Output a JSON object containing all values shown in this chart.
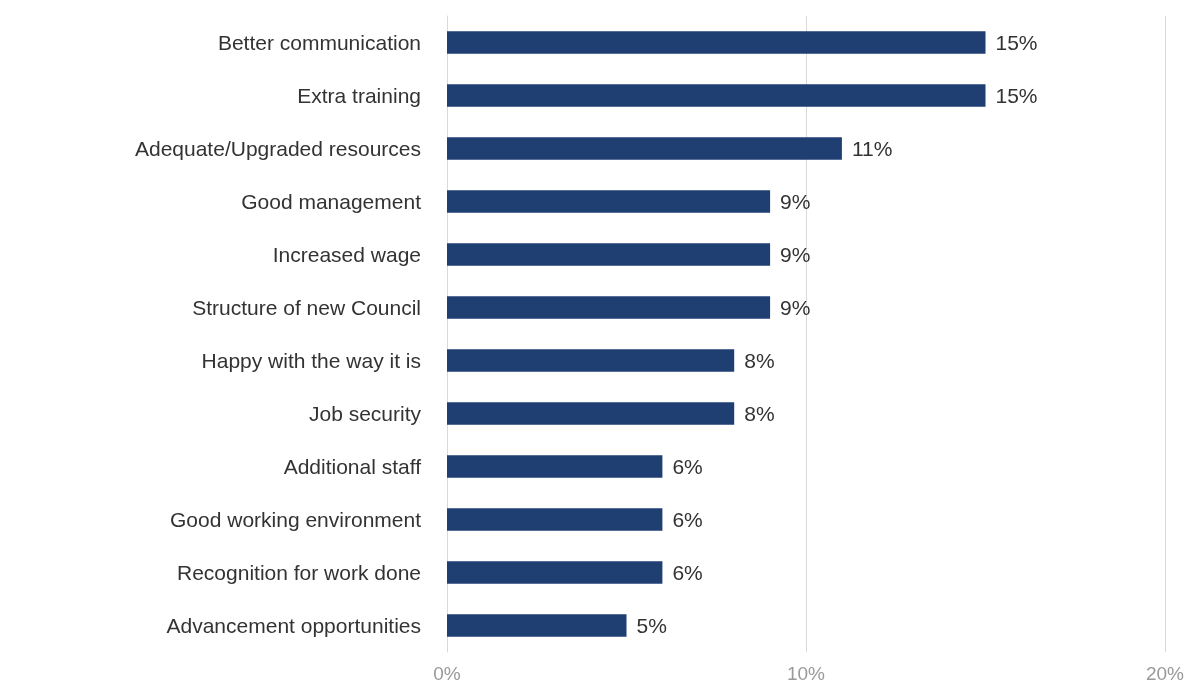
{
  "chart_data": {
    "type": "bar",
    "orientation": "horizontal",
    "categories": [
      "Better communication",
      "Extra training",
      "Adequate/Upgraded resources",
      "Good management",
      "Increased wage",
      "Structure of new Council",
      "Happy with the way it is",
      "Job security",
      "Additional staff",
      "Good working environment",
      "Recognition for work done",
      "Advancement opportunities"
    ],
    "values": [
      15,
      15,
      11,
      9,
      9,
      9,
      8,
      8,
      6,
      6,
      6,
      5
    ],
    "value_labels": [
      "15%",
      "15%",
      "11%",
      "9%",
      "9%",
      "9%",
      "8%",
      "8%",
      "6%",
      "6%",
      "6%",
      "5%"
    ],
    "color": "#1f3f73",
    "xlim": [
      0,
      20
    ],
    "xticks": [
      {
        "value": 0,
        "label": "0%"
      },
      {
        "value": 10,
        "label": "10%"
      },
      {
        "value": 20,
        "label": "20%"
      }
    ],
    "grid": "x"
  }
}
